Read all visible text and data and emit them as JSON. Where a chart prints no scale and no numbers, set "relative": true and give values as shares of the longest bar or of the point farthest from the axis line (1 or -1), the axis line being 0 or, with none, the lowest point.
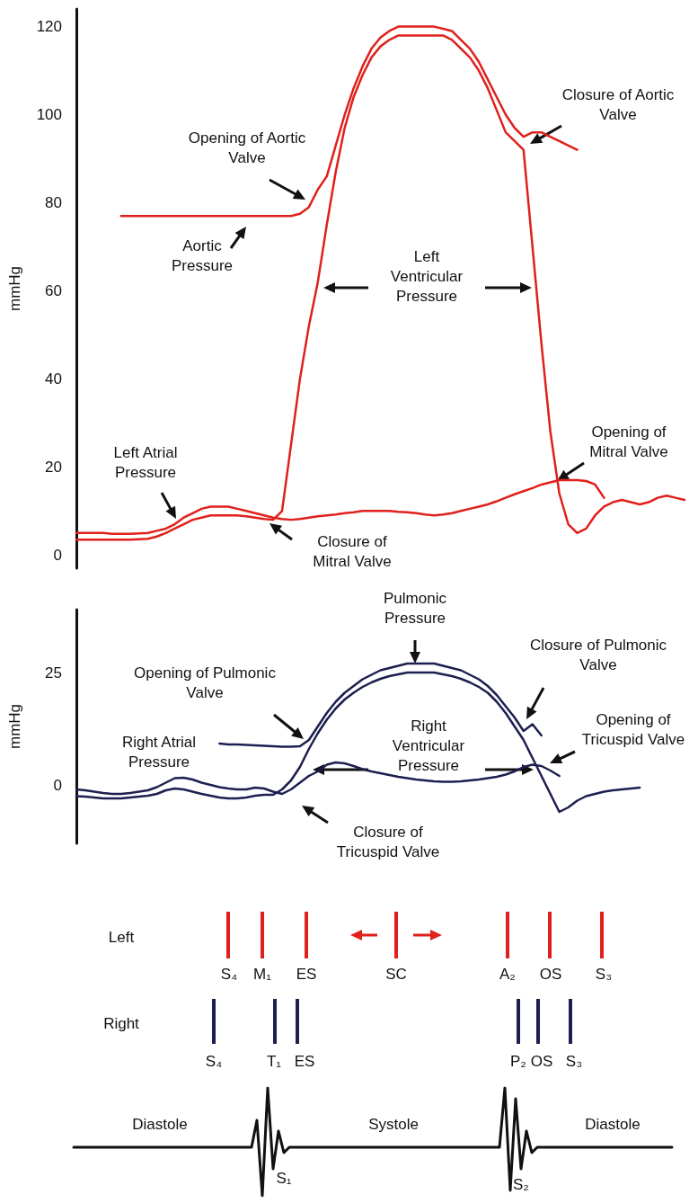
{
  "chart_data": [
    {
      "type": "line",
      "ylabel": "mmHg",
      "ylim": [
        -3,
        124
      ],
      "yticks": [
        0,
        20,
        40,
        60,
        80,
        100,
        120
      ],
      "marker": "none",
      "categories": [
        null,
        null,
        null,
        null,
        null,
        null,
        null,
        null,
        null,
        null,
        null,
        null,
        null,
        null,
        null,
        null,
        null,
        null,
        null,
        null,
        null,
        null,
        null,
        null,
        null,
        null,
        null,
        null,
        null,
        null,
        null,
        null,
        null,
        null,
        null,
        null,
        null,
        null,
        null,
        null,
        null,
        null,
        null,
        null,
        null,
        null,
        null,
        null,
        null,
        null,
        null,
        null,
        null,
        null,
        null,
        null,
        null,
        null,
        null,
        null,
        null,
        null,
        null,
        null,
        null,
        null,
        null,
        null,
        null
      ],
      "series": [
        {
          "color": "#e0201b",
          "values": [
            null,
            null,
            null,
            null,
            null,
            77,
            77,
            77,
            77,
            77,
            77,
            77,
            77,
            77,
            77,
            77,
            77,
            77,
            77,
            77,
            77,
            77,
            77,
            77,
            77,
            77.5,
            79,
            83,
            86,
            93,
            100,
            106,
            111,
            115,
            117.5,
            119,
            120,
            120,
            120,
            120,
            120,
            119.5,
            119,
            117,
            115,
            112,
            108,
            104,
            100,
            97,
            95,
            96,
            96,
            95,
            94,
            93,
            92,
            null,
            null,
            null,
            null,
            null,
            null,
            null,
            null,
            null,
            null,
            null,
            null
          ]
        },
        {
          "color": "#e0201b",
          "values": [
            3.5,
            3.5,
            3.5,
            3.5,
            3.5,
            3.5,
            3.5,
            3.6,
            3.7,
            4.2,
            5,
            6,
            7,
            8,
            8.5,
            9,
            9,
            9,
            9,
            8.8,
            8.5,
            8.2,
            8,
            10,
            25,
            40,
            52,
            62,
            75,
            87,
            97,
            104,
            109,
            113,
            115.5,
            117,
            118,
            118,
            118,
            118,
            118,
            118,
            117,
            115,
            113,
            110,
            106,
            101,
            96,
            94,
            92,
            70,
            48,
            28,
            14,
            7,
            5,
            6,
            9,
            11,
            12,
            12.5,
            12,
            11.5,
            12,
            13,
            13.5,
            13,
            12.5
          ]
        },
        {
          "color": "#e0201b",
          "values": [
            5,
            5,
            5,
            5,
            4.8,
            4.8,
            4.8,
            4.9,
            5,
            5.5,
            6,
            7,
            8.5,
            9.5,
            10.5,
            11,
            11,
            11,
            10.5,
            10,
            9.5,
            9,
            8.5,
            8.2,
            8,
            8.2,
            8.5,
            8.8,
            9,
            9.2,
            9.5,
            9.7,
            10,
            10,
            10,
            10,
            9.8,
            9.7,
            9.5,
            9.2,
            9,
            9.2,
            9.5,
            10,
            10.5,
            11,
            11.5,
            12.2,
            13,
            13.8,
            14.5,
            15.2,
            16,
            16.5,
            17,
            17,
            17,
            16.8,
            16,
            13,
            null,
            null,
            null,
            null,
            null,
            null,
            null,
            null,
            null
          ]
        }
      ],
      "annotations": [
        "Opening of Aortic Valve",
        "Aortic Pressure",
        "Left Ventricular Pressure",
        "Closure of Aortic Valve",
        "Opening of Mitral Valve",
        "Left Atrial Pressure",
        "Closure of Mitral Valve"
      ]
    },
    {
      "type": "line",
      "ylabel": "mmHg",
      "ylim": [
        -13,
        39
      ],
      "yticks": [
        0,
        25
      ],
      "marker": "none",
      "categories": [
        null,
        null,
        null,
        null,
        null,
        null,
        null,
        null,
        null,
        null,
        null,
        null,
        null,
        null,
        null,
        null,
        null,
        null,
        null,
        null,
        null,
        null,
        null,
        null,
        null,
        null,
        null,
        null,
        null,
        null,
        null,
        null,
        null,
        null,
        null,
        null,
        null,
        null,
        null,
        null,
        null,
        null,
        null,
        null,
        null,
        null,
        null,
        null,
        null,
        null,
        null,
        null,
        null,
        null,
        null,
        null,
        null,
        null,
        null,
        null,
        null,
        null,
        null,
        null,
        null,
        null,
        null,
        null,
        null
      ],
      "series": [
        {
          "color": "#1c1f4f",
          "values": [
            null,
            null,
            null,
            null,
            null,
            null,
            null,
            null,
            null,
            null,
            null,
            null,
            null,
            null,
            null,
            null,
            9.2,
            9,
            9,
            8.9,
            8.8,
            8.7,
            8.6,
            8.5,
            8.5,
            8.6,
            10,
            13,
            16,
            18.5,
            20.5,
            22,
            23.5,
            24.5,
            25.5,
            26,
            26.5,
            27,
            27,
            27,
            27,
            26.5,
            26,
            25.5,
            24.5,
            23.5,
            22,
            20,
            17.5,
            15,
            12,
            13.5,
            11,
            null,
            null,
            null,
            null,
            null,
            null,
            null,
            null,
            null,
            null,
            null,
            null,
            null,
            null,
            null,
            null
          ]
        },
        {
          "color": "#1c1f4f",
          "values": [
            -2.5,
            -2.6,
            -2.8,
            -3,
            -3,
            -3,
            -2.8,
            -2.6,
            -2.4,
            -2,
            -1.2,
            -0.8,
            -1,
            -1.5,
            -2,
            -2.4,
            -2.8,
            -3,
            -3,
            -2.8,
            -2.4,
            -2.2,
            -2.2,
            -1,
            1,
            4,
            8,
            11.5,
            14.5,
            17,
            19,
            20.5,
            21.8,
            22.8,
            23.6,
            24.2,
            24.6,
            25,
            25,
            25,
            25,
            24.6,
            24.2,
            23.6,
            22.8,
            21.8,
            20.5,
            18.5,
            16,
            13,
            10,
            6,
            2,
            -2,
            -6,
            -5,
            -3.5,
            -2.5,
            -2,
            -1.5,
            -1.2,
            -1,
            -0.8,
            -0.6,
            null,
            null,
            null,
            null,
            null
          ]
        },
        {
          "color": "#1c1f4f",
          "values": [
            -1,
            -1.2,
            -1.5,
            -1.8,
            -2,
            -2,
            -1.8,
            -1.5,
            -1.2,
            -0.5,
            0.5,
            1.5,
            1.6,
            1.2,
            0.5,
            0,
            -0.5,
            -0.8,
            -1,
            -1,
            -0.6,
            -0.8,
            -1.5,
            -2,
            -1,
            0.5,
            2,
            3,
            4.5,
            5,
            4.8,
            4.2,
            3.5,
            3,
            2.6,
            2.2,
            1.8,
            1.5,
            1.2,
            1,
            0.8,
            0.7,
            0.7,
            0.8,
            1,
            1.2,
            1.5,
            1.8,
            2.3,
            3,
            4,
            4.5,
            4.2,
            3.2,
            2,
            null,
            null,
            null,
            null,
            null,
            null,
            null,
            null,
            null,
            null,
            null,
            null,
            null,
            null
          ]
        }
      ],
      "annotations": [
        "Pulmonic Pressure",
        "Opening of Pulmonic Valve",
        "Closure of Pulmonic Valve",
        "Right Atrial Pressure",
        "Right Ventricular Pressure",
        "Opening of Tricuspid Valve",
        "Closure of Tricuspid Valve"
      ]
    },
    {
      "type": "line",
      "relative": true,
      "marker": "none",
      "categories": [
        null,
        null,
        null,
        null,
        null,
        null,
        null,
        null,
        null,
        null,
        null,
        null,
        null,
        null,
        null,
        null,
        null,
        null,
        null,
        null,
        null,
        null,
        null,
        null,
        null,
        null,
        null,
        null,
        null,
        null,
        null,
        null,
        null,
        null,
        null,
        null,
        null,
        null,
        null,
        null,
        null,
        null,
        null,
        null,
        null,
        null,
        null,
        null,
        null,
        null,
        null,
        null,
        null,
        null,
        null,
        null,
        null,
        null,
        null,
        null,
        null,
        null,
        null,
        null,
        null,
        null,
        null,
        null,
        null,
        null,
        null,
        null,
        null,
        null,
        null,
        null,
        null,
        null,
        null,
        null,
        null,
        null,
        null,
        null,
        null,
        null,
        null,
        null,
        null,
        null,
        null,
        null,
        null,
        null,
        null,
        null,
        null,
        null,
        null,
        null,
        null,
        null,
        null,
        null,
        null,
        null,
        null,
        null,
        null,
        null,
        null,
        null
      ],
      "series": [
        {
          "color": "#111111",
          "values": [
            0.45,
            0.45,
            0.45,
            0.45,
            0.45,
            0.45,
            0.45,
            0.45,
            0.45,
            0.45,
            0.45,
            0.45,
            0.45,
            0.45,
            0.45,
            0.45,
            0.45,
            0.45,
            0.45,
            0.45,
            0.45,
            0.45,
            0.45,
            0.45,
            0.45,
            0.45,
            0.45,
            0.45,
            0.45,
            0.45,
            0.45,
            0.45,
            0.45,
            0.45,
            0.7,
            0,
            1,
            0.25,
            0.6,
            0.4,
            0.45,
            0.45,
            0.45,
            0.45,
            0.45,
            0.45,
            0.45,
            0.45,
            0.45,
            0.45,
            0.45,
            0.45,
            0.45,
            0.45,
            0.45,
            0.45,
            0.45,
            0.45,
            0.45,
            0.45,
            0.45,
            0.45,
            0.45,
            0.45,
            0.45,
            0.45,
            0.45,
            0.45,
            0.45,
            0.45,
            0.45,
            0.45,
            0.45,
            0.45,
            0.45,
            0.45,
            0.45,
            0.45,
            0.45,
            0.45,
            1,
            0.05,
            0.9,
            0.25,
            0.6,
            0.4,
            0.45,
            0.45,
            0.45,
            0.45,
            0.45,
            0.45,
            0.45,
            0.45,
            0.45,
            0.45,
            0.45,
            0.45,
            0.45,
            0.45,
            0.45,
            0.45,
            0.45,
            0.45,
            0.45,
            0.45,
            0.45,
            0.45,
            0.45,
            0.45,
            0.45,
            0.45
          ]
        }
      ],
      "annotations": [
        "Left",
        "S₄",
        "M₁",
        "ES",
        "SC",
        "A₂",
        "OS",
        "S₃",
        "Right",
        "S₄",
        "T₁",
        "ES",
        "P₂",
        "OS",
        "S₃",
        "Diastole",
        "Systole",
        "Diastole",
        "S₁",
        "S₂"
      ]
    }
  ]
}
